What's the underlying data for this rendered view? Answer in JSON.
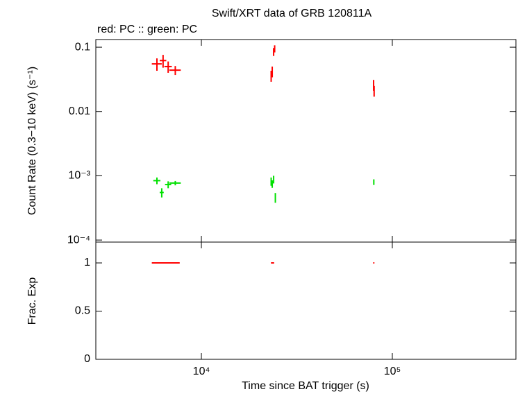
{
  "chart_data": [
    {
      "type": "scatter",
      "title": "Swift/XRT data of GRB 120811A",
      "subtitle": "red: PC  :: green: PC",
      "ylabel": "Count Rate (0.3−10 keV) (s⁻¹)",
      "xlog": true,
      "ylog": true,
      "xlim": [
        2800,
        444000
      ],
      "ylim": [
        9.3e-05,
        0.1316
      ],
      "yticks": [
        0.1,
        0.01,
        {
          "value": 0.001,
          "label": "10⁻³"
        },
        {
          "value": 0.0001,
          "label": "10⁻⁴"
        }
      ],
      "series": [
        {
          "color": "#ff0000",
          "x": [
            5850,
            6300,
            6700,
            7300,
            23200,
            23500,
            23900,
            24200,
            79800,
            80300
          ],
          "xerr": [
            350,
            250,
            300,
            500,
            100,
            100,
            100,
            100,
            300,
            300
          ],
          "values": [
            0.055,
            0.062,
            0.05,
            0.044,
            0.036,
            0.042,
            0.085,
            0.095,
            0.026,
            0.021
          ],
          "yerr": [
            0.012,
            0.014,
            0.01,
            0.007,
            0.007,
            0.008,
            0.012,
            0.012,
            0.005,
            0.004
          ]
        },
        {
          "color": "#00e000",
          "x": [
            5850,
            6200,
            6700,
            7300,
            23200,
            23500,
            23900,
            24400,
            80000
          ],
          "xerr": [
            250,
            150,
            250,
            500,
            150,
            150,
            100,
            100,
            300
          ],
          "values": [
            0.00084,
            0.00055,
            0.00073,
            0.00077,
            0.00082,
            0.00075,
            0.00088,
            0.00046,
            0.0008
          ],
          "yerr": [
            0.0001,
            9e-05,
            9e-05,
            6e-05,
            0.00012,
            0.0001,
            0.00012,
            8e-05,
            8e-05
          ]
        }
      ]
    },
    {
      "type": "scatter",
      "xlabel": "Time since BAT trigger (s)",
      "ylabel": "Frac. Exp",
      "xlog": true,
      "ylog": false,
      "xlim": [
        2800,
        444000
      ],
      "ylim": [
        0,
        1.216
      ],
      "xticks": [
        {
          "value": 10000,
          "label": "10⁴"
        },
        {
          "value": 100000,
          "label": "10⁵"
        }
      ],
      "yticks": [
        0,
        0.5,
        1
      ],
      "series": [
        {
          "color": "#ff0000",
          "x": [
            6600,
            23600,
            80000
          ],
          "xerr": [
            1100,
            450,
            600
          ],
          "values": [
            1,
            1,
            1
          ]
        }
      ]
    }
  ]
}
